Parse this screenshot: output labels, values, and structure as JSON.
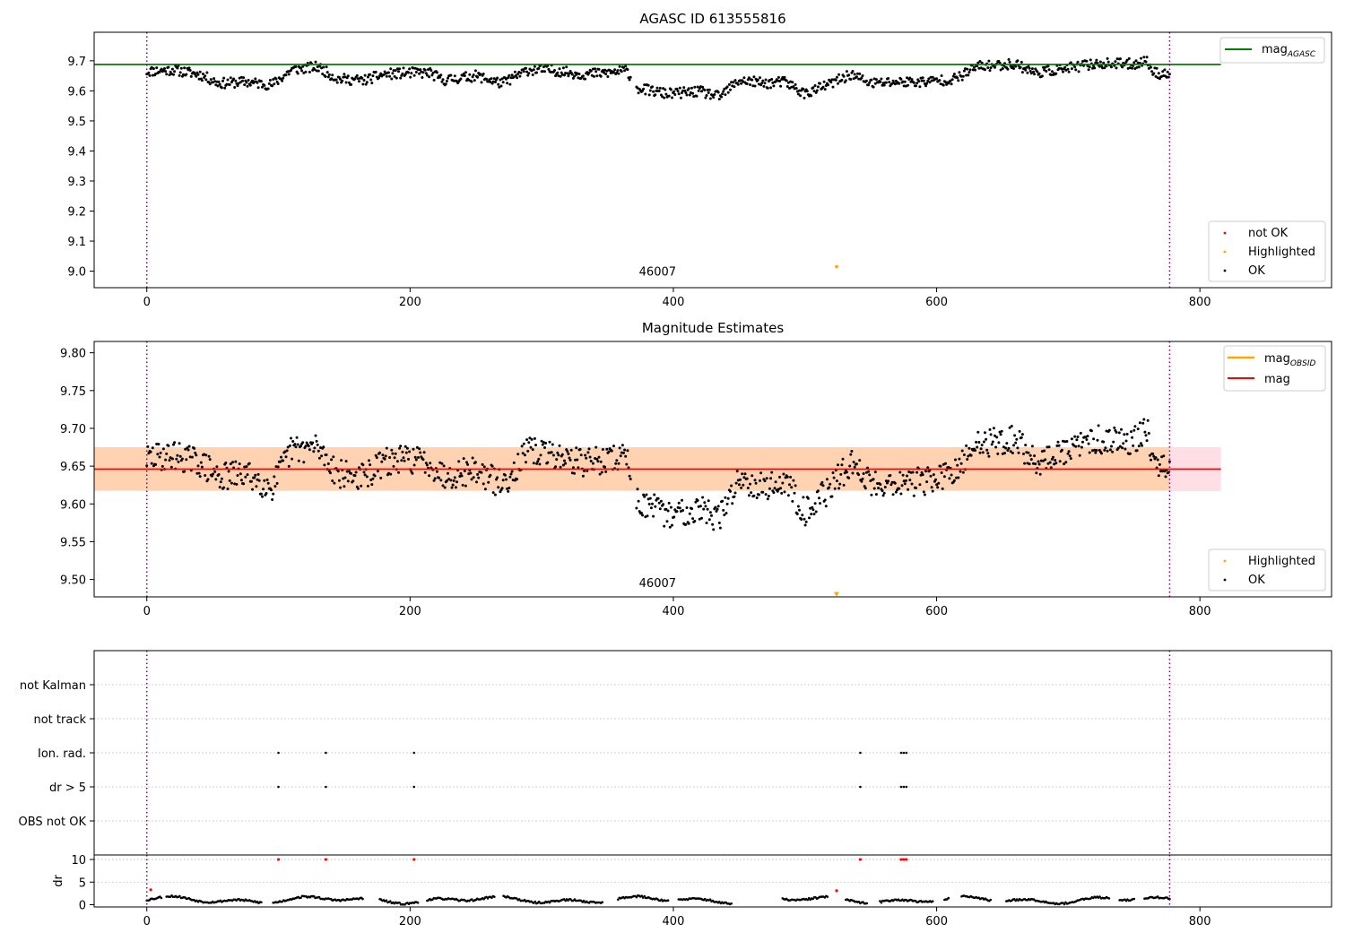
{
  "chart_data": [
    {
      "type": "scatter",
      "title": "AGASC ID 613555816",
      "xlim": [
        -40,
        900
      ],
      "ylim": [
        8.945,
        9.795
      ],
      "x_ticks": [
        0,
        200,
        400,
        600,
        800
      ],
      "y_ticks": [
        9.0,
        9.1,
        9.2,
        9.3,
        9.4,
        9.5,
        9.6,
        9.7
      ],
      "y_tick_labels": [
        "9.0",
        "9.1",
        "9.2",
        "9.3",
        "9.4",
        "9.5",
        "9.6",
        "9.7"
      ],
      "vlines": [
        0,
        777
      ],
      "mag_agasc": 9.688,
      "obsid_label": {
        "text": "46007",
        "x": 388,
        "y": 8.985
      },
      "ok_profile": [
        [
          0,
          9.665
        ],
        [
          20,
          9.67
        ],
        [
          40,
          9.655
        ],
        [
          55,
          9.625
        ],
        [
          75,
          9.63
        ],
        [
          95,
          9.62
        ],
        [
          110,
          9.67
        ],
        [
          130,
          9.68
        ],
        [
          145,
          9.64
        ],
        [
          165,
          9.635
        ],
        [
          180,
          9.655
        ],
        [
          200,
          9.66
        ],
        [
          215,
          9.66
        ],
        [
          225,
          9.635
        ],
        [
          250,
          9.65
        ],
        [
          270,
          9.625
        ],
        [
          290,
          9.67
        ],
        [
          310,
          9.668
        ],
        [
          330,
          9.655
        ],
        [
          350,
          9.66
        ],
        [
          365,
          9.668
        ],
        [
          372,
          9.61
        ],
        [
          395,
          9.59
        ],
        [
          420,
          9.598
        ],
        [
          435,
          9.58
        ],
        [
          450,
          9.635
        ],
        [
          470,
          9.625
        ],
        [
          485,
          9.63
        ],
        [
          500,
          9.59
        ],
        [
          520,
          9.625
        ],
        [
          535,
          9.655
        ],
        [
          550,
          9.625
        ],
        [
          570,
          9.63
        ],
        [
          590,
          9.63
        ],
        [
          615,
          9.64
        ],
        [
          630,
          9.68
        ],
        [
          660,
          9.69
        ],
        [
          675,
          9.66
        ],
        [
          700,
          9.675
        ],
        [
          720,
          9.69
        ],
        [
          750,
          9.69
        ],
        [
          760,
          9.7
        ],
        [
          765,
          9.66
        ],
        [
          777,
          9.655
        ]
      ],
      "highlighted_points": [
        [
          524,
          9.015
        ]
      ],
      "legend_top": [
        {
          "label": "mag",
          "sub": "AGASC",
          "color": "#008000"
        }
      ],
      "legend_bottom": [
        {
          "label": "not OK",
          "color": "#ff0000"
        },
        {
          "label": "Highlighted",
          "color": "#ffa500"
        },
        {
          "label": "OK",
          "color": "#000000"
        }
      ]
    },
    {
      "type": "scatter",
      "title": "Magnitude Estimates",
      "xlim": [
        -40,
        900
      ],
      "ylim": [
        9.477,
        9.815
      ],
      "x_ticks": [
        0,
        200,
        400,
        600,
        800
      ],
      "y_ticks": [
        9.5,
        9.55,
        9.6,
        9.65,
        9.7,
        9.75,
        9.8
      ],
      "y_tick_labels": [
        "9.50",
        "9.55",
        "9.60",
        "9.65",
        "9.70",
        "9.75",
        "9.80"
      ],
      "vlines": [
        0,
        777
      ],
      "mag": 9.646,
      "mag_band": [
        9.617,
        9.675
      ],
      "mag_band_xmax": 816,
      "mag_obsid": 9.646,
      "mag_obsid_band": [
        9.618,
        9.675
      ],
      "mag_obsid_band_xmax": 777,
      "obsid_label": {
        "text": "46007",
        "x": 388,
        "y": 9.49
      },
      "ok_profile": [
        [
          0,
          9.66
        ],
        [
          20,
          9.665
        ],
        [
          40,
          9.655
        ],
        [
          55,
          9.635
        ],
        [
          75,
          9.64
        ],
        [
          95,
          9.622
        ],
        [
          110,
          9.672
        ],
        [
          130,
          9.675
        ],
        [
          145,
          9.64
        ],
        [
          165,
          9.635
        ],
        [
          180,
          9.655
        ],
        [
          200,
          9.66
        ],
        [
          215,
          9.655
        ],
        [
          225,
          9.638
        ],
        [
          250,
          9.645
        ],
        [
          270,
          9.625
        ],
        [
          290,
          9.67
        ],
        [
          310,
          9.665
        ],
        [
          330,
          9.655
        ],
        [
          350,
          9.658
        ],
        [
          365,
          9.665
        ],
        [
          372,
          9.605
        ],
        [
          395,
          9.585
        ],
        [
          420,
          9.595
        ],
        [
          435,
          9.58
        ],
        [
          450,
          9.635
        ],
        [
          470,
          9.622
        ],
        [
          485,
          9.63
        ],
        [
          500,
          9.59
        ],
        [
          520,
          9.622
        ],
        [
          535,
          9.655
        ],
        [
          550,
          9.628
        ],
        [
          570,
          9.628
        ],
        [
          590,
          9.63
        ],
        [
          615,
          9.64
        ],
        [
          630,
          9.68
        ],
        [
          660,
          9.685
        ],
        [
          675,
          9.655
        ],
        [
          700,
          9.67
        ],
        [
          720,
          9.685
        ],
        [
          750,
          9.685
        ],
        [
          760,
          9.7
        ],
        [
          765,
          9.655
        ],
        [
          777,
          9.655
        ]
      ],
      "highlighted_points": [
        [
          524,
          9.481
        ]
      ],
      "legend_top": [
        {
          "label": "mag",
          "sub": "OBSID",
          "color": "#ffa500"
        },
        {
          "label": "mag",
          "sub": "",
          "color": "#ff0000"
        }
      ],
      "legend_bottom": [
        {
          "label": "Highlighted",
          "color": "#ffa500"
        },
        {
          "label": "OK",
          "color": "#000000"
        }
      ]
    },
    {
      "type": "scatter",
      "xlim": [
        -40,
        900
      ],
      "vlines": [
        0,
        777
      ],
      "flag_rows": [
        "not Kalman",
        "not track",
        "Ion. rad.",
        "dr > 5",
        "OBS not OK"
      ],
      "flag_points": {
        "Ion. rad.": [
          100,
          136,
          203,
          542,
          573,
          575,
          577
        ],
        "dr > 5": [
          100,
          136,
          203,
          542,
          573,
          575,
          577
        ]
      }
    },
    {
      "type": "scatter",
      "ylabel": "dr",
      "xlim": [
        -40,
        900
      ],
      "ylim": [
        -0.5,
        11
      ],
      "x_ticks": [
        0,
        200,
        400,
        600,
        800
      ],
      "y_ticks": [
        0,
        5,
        10
      ],
      "y_tick_labels": [
        "0",
        "5",
        "10"
      ],
      "vlines": [
        0,
        777
      ],
      "dr_gaps": [
        [
          12,
          14
        ],
        [
          88,
          95
        ],
        [
          165,
          176
        ],
        [
          207,
          212
        ],
        [
          265,
          270
        ],
        [
          347,
          357
        ],
        [
          397,
          403
        ],
        [
          445,
          482
        ],
        [
          518,
          530
        ],
        [
          548,
          556
        ],
        [
          598,
          605
        ],
        [
          610,
          618
        ],
        [
          642,
          652
        ],
        [
          732,
          738
        ],
        [
          751,
          757
        ]
      ],
      "flagged_points": [
        [
          100,
          10
        ],
        [
          136,
          10
        ],
        [
          203,
          10
        ],
        [
          542,
          10
        ],
        [
          573,
          10
        ],
        [
          575,
          10
        ],
        [
          577,
          10
        ],
        [
          3,
          3.3
        ],
        [
          524,
          3.1
        ]
      ]
    }
  ]
}
